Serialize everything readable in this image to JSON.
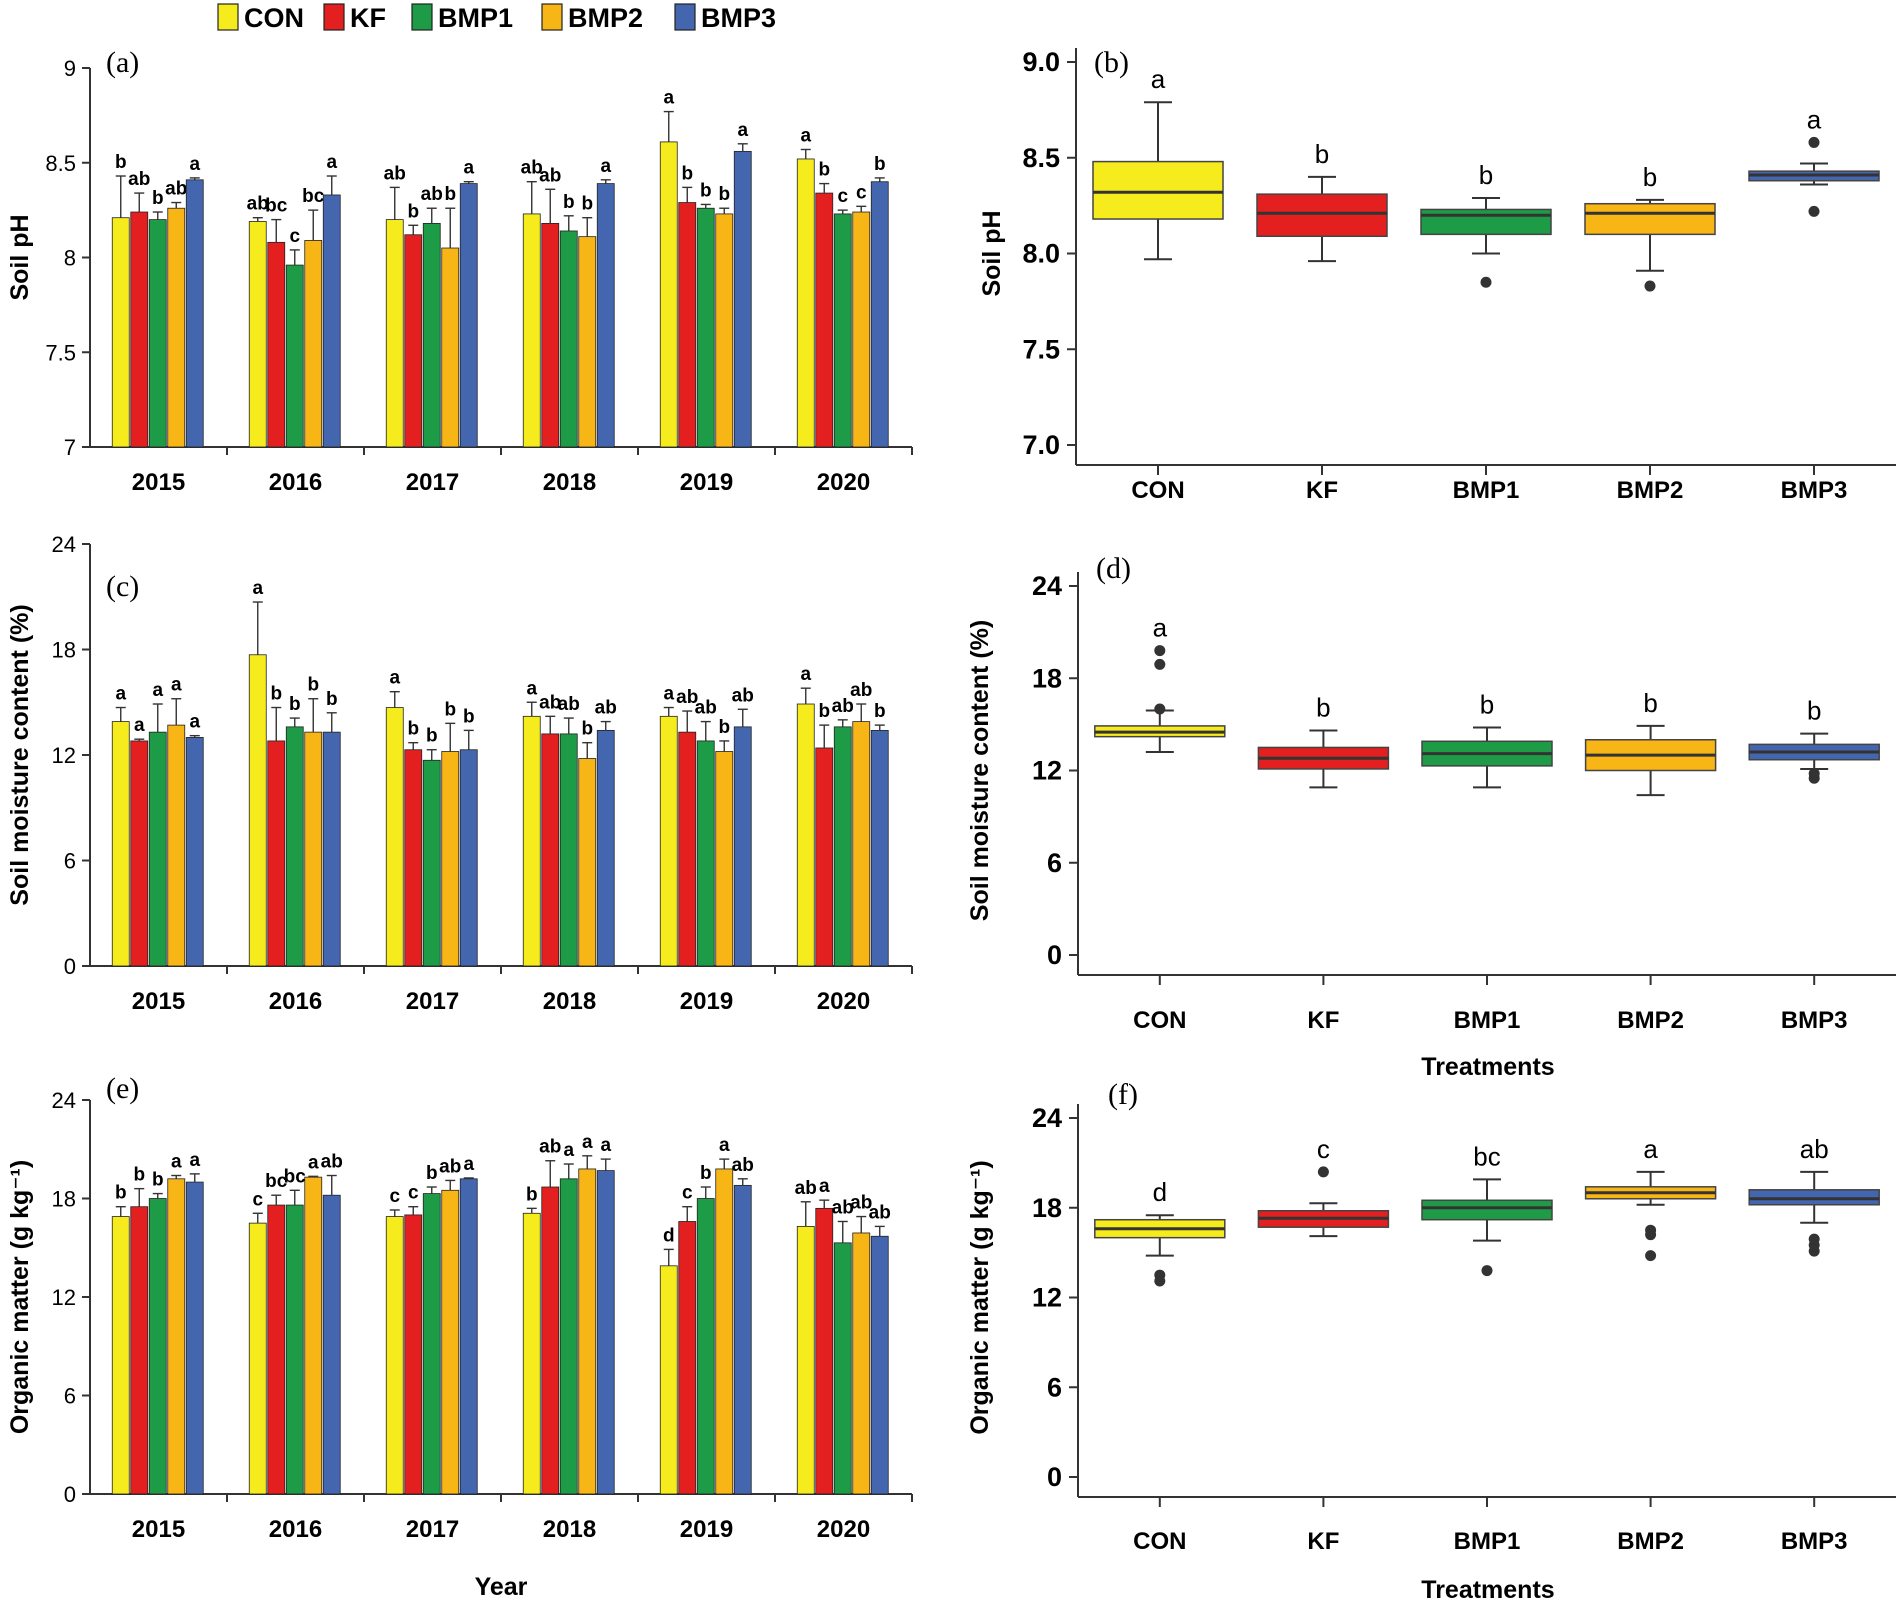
{
  "legend": {
    "items": [
      {
        "label": "CON",
        "color": "#F6EB1D"
      },
      {
        "label": "KF",
        "color": "#E3201F"
      },
      {
        "label": "BMP1",
        "color": "#1E9B47"
      },
      {
        "label": "BMP2",
        "color": "#F8B616"
      },
      {
        "label": "BMP3",
        "color": "#4366AE"
      }
    ]
  },
  "chart_data": [
    {
      "id": "a",
      "panel_label": "(a)",
      "type": "bar",
      "ylabel": "Soil pH",
      "xlabel": "",
      "ylim": [
        7,
        9
      ],
      "yticks": [
        "7",
        "7.5",
        "8",
        "8.5",
        "9"
      ],
      "categories": [
        "2015",
        "2016",
        "2017",
        "2018",
        "2019",
        "2020"
      ],
      "series": [
        {
          "name": "CON",
          "values": [
            8.21,
            8.19,
            8.2,
            8.23,
            8.61,
            8.52
          ],
          "errors": [
            0.22,
            0.02,
            0.17,
            0.17,
            0.16,
            0.05
          ],
          "labels": [
            "b",
            "ab",
            "ab",
            "ab",
            "a",
            "a"
          ]
        },
        {
          "name": "KF",
          "values": [
            8.24,
            8.08,
            8.12,
            8.18,
            8.29,
            8.34
          ],
          "errors": [
            0.1,
            0.12,
            0.05,
            0.18,
            0.08,
            0.05
          ],
          "labels": [
            "ab",
            "bc",
            "b",
            "ab",
            "b",
            "b"
          ]
        },
        {
          "name": "BMP1",
          "values": [
            8.2,
            7.96,
            8.18,
            8.14,
            8.26,
            8.23
          ],
          "errors": [
            0.04,
            0.08,
            0.08,
            0.08,
            0.02,
            0.02
          ],
          "labels": [
            "b",
            "c",
            "ab",
            "b",
            "b",
            "c"
          ]
        },
        {
          "name": "BMP2",
          "values": [
            8.26,
            8.09,
            8.05,
            8.11,
            8.23,
            8.24
          ],
          "errors": [
            0.03,
            0.16,
            0.21,
            0.1,
            0.03,
            0.03
          ],
          "labels": [
            "ab",
            "bc",
            "b",
            "b",
            "b",
            "c"
          ]
        },
        {
          "name": "BMP3",
          "values": [
            8.41,
            8.33,
            8.39,
            8.39,
            8.56,
            8.4
          ],
          "errors": [
            0.01,
            0.1,
            0.01,
            0.02,
            0.04,
            0.02
          ],
          "labels": [
            "a",
            "a",
            "a",
            "a",
            "a",
            "b"
          ]
        }
      ]
    },
    {
      "id": "b",
      "panel_label": "(b)",
      "type": "box",
      "ylabel": "Soil pH",
      "xlabel": "",
      "ylim": [
        7.0,
        9.0
      ],
      "yticks": [
        "7.0",
        "7.5",
        "8.0",
        "8.5",
        "9.0"
      ],
      "categories": [
        "CON",
        "KF",
        "BMP1",
        "BMP2",
        "BMP3"
      ],
      "boxes": [
        {
          "name": "CON",
          "q1": 8.18,
          "median": 8.32,
          "q3": 8.48,
          "whisker_low": 7.97,
          "whisker_high": 8.79,
          "outliers": [],
          "label": "a"
        },
        {
          "name": "KF",
          "q1": 8.09,
          "median": 8.21,
          "q3": 8.31,
          "whisker_low": 7.96,
          "whisker_high": 8.4,
          "outliers": [],
          "label": "b"
        },
        {
          "name": "BMP1",
          "q1": 8.1,
          "median": 8.2,
          "q3": 8.23,
          "whisker_low": 8.0,
          "whisker_high": 8.29,
          "outliers": [
            7.85
          ],
          "label": "b"
        },
        {
          "name": "BMP2",
          "q1": 8.1,
          "median": 8.21,
          "q3": 8.26,
          "whisker_low": 7.91,
          "whisker_high": 8.28,
          "outliers": [
            7.83
          ],
          "label": "b"
        },
        {
          "name": "BMP3",
          "q1": 8.38,
          "median": 8.41,
          "q3": 8.43,
          "whisker_low": 8.36,
          "whisker_high": 8.47,
          "outliers": [
            8.22,
            8.58
          ],
          "label": "a"
        }
      ]
    },
    {
      "id": "c",
      "panel_label": "(c)",
      "type": "bar",
      "ylabel": "Soil moisture content (%)",
      "xlabel": "",
      "ylim": [
        0,
        24
      ],
      "yticks": [
        "0",
        "6",
        "12",
        "18",
        "24"
      ],
      "categories": [
        "2015",
        "2016",
        "2017",
        "2018",
        "2019",
        "2020"
      ],
      "series": [
        {
          "name": "CON",
          "values": [
            13.9,
            17.7,
            14.7,
            14.2,
            14.2,
            14.9
          ],
          "errors": [
            0.8,
            3.0,
            0.9,
            0.8,
            0.5,
            0.9
          ],
          "labels": [
            "a",
            "a",
            "a",
            "a",
            "a",
            "a"
          ]
        },
        {
          "name": "KF",
          "values": [
            12.8,
            12.8,
            12.3,
            13.2,
            13.3,
            12.4
          ],
          "errors": [
            0.1,
            1.9,
            0.4,
            1.0,
            1.2,
            1.3
          ],
          "labels": [
            "a",
            "b",
            "b",
            "ab",
            "ab",
            "b"
          ]
        },
        {
          "name": "BMP1",
          "values": [
            13.3,
            13.6,
            11.7,
            13.2,
            12.8,
            13.6
          ],
          "errors": [
            1.6,
            0.5,
            0.6,
            0.9,
            1.1,
            0.4
          ],
          "labels": [
            "a",
            "b",
            "b",
            "ab",
            "ab",
            "ab"
          ]
        },
        {
          "name": "BMP2",
          "values": [
            13.7,
            13.3,
            12.2,
            11.8,
            12.2,
            13.9
          ],
          "errors": [
            1.5,
            1.9,
            1.6,
            0.9,
            0.6,
            1.0
          ],
          "labels": [
            "a",
            "b",
            "b",
            "b",
            "b",
            "ab"
          ]
        },
        {
          "name": "BMP3",
          "values": [
            13.0,
            13.3,
            12.3,
            13.4,
            13.6,
            13.4
          ],
          "errors": [
            0.1,
            1.1,
            1.1,
            0.5,
            1.0,
            0.3
          ],
          "labels": [
            "a",
            "b",
            "b",
            "ab",
            "ab",
            "b"
          ]
        }
      ]
    },
    {
      "id": "d",
      "panel_label": "(d)",
      "type": "box",
      "ylabel": "Soil moisture content (%)",
      "xlabel": "Treatments",
      "ylim": [
        0,
        24
      ],
      "yticks": [
        "0",
        "6",
        "12",
        "18",
        "24"
      ],
      "categories": [
        "CON",
        "KF",
        "BMP1",
        "BMP2",
        "BMP3"
      ],
      "boxes": [
        {
          "name": "CON",
          "q1": 14.2,
          "median": 14.5,
          "q3": 14.9,
          "whisker_low": 13.2,
          "whisker_high": 15.9,
          "outliers": [
            16.0,
            18.9,
            19.8
          ],
          "label": "a"
        },
        {
          "name": "KF",
          "q1": 12.1,
          "median": 12.8,
          "q3": 13.5,
          "whisker_low": 10.9,
          "whisker_high": 14.6,
          "outliers": [],
          "label": "b"
        },
        {
          "name": "BMP1",
          "q1": 12.3,
          "median": 13.1,
          "q3": 13.9,
          "whisker_low": 10.9,
          "whisker_high": 14.8,
          "outliers": [],
          "label": "b"
        },
        {
          "name": "BMP2",
          "q1": 12.0,
          "median": 13.0,
          "q3": 14.0,
          "whisker_low": 10.4,
          "whisker_high": 14.9,
          "outliers": [],
          "label": "b"
        },
        {
          "name": "BMP3",
          "q1": 12.7,
          "median": 13.2,
          "q3": 13.7,
          "whisker_low": 12.1,
          "whisker_high": 14.4,
          "outliers": [
            11.5,
            11.8
          ],
          "label": "b"
        }
      ]
    },
    {
      "id": "e",
      "panel_label": "(e)",
      "type": "bar",
      "ylabel": "Organic matter (g kg⁻¹)",
      "xlabel": "Year",
      "ylim": [
        0,
        24
      ],
      "yticks": [
        "0",
        "6",
        "12",
        "18",
        "24"
      ],
      "categories": [
        "2015",
        "2016",
        "2017",
        "2018",
        "2019",
        "2020"
      ],
      "series": [
        {
          "name": "CON",
          "values": [
            16.9,
            16.5,
            16.9,
            17.1,
            13.9,
            16.3
          ],
          "errors": [
            0.6,
            0.6,
            0.4,
            0.3,
            1.0,
            1.5
          ],
          "labels": [
            "b",
            "c",
            "c",
            "b",
            "d",
            "ab"
          ]
        },
        {
          "name": "KF",
          "values": [
            17.5,
            17.6,
            17.0,
            18.7,
            16.6,
            17.4
          ],
          "errors": [
            1.1,
            0.6,
            0.5,
            1.6,
            0.9,
            0.5
          ],
          "labels": [
            "b",
            "bc",
            "c",
            "ab",
            "c",
            "a"
          ]
        },
        {
          "name": "BMP1",
          "values": [
            18.0,
            17.6,
            18.3,
            19.2,
            18.0,
            15.3
          ],
          "errors": [
            0.3,
            0.9,
            0.4,
            0.9,
            0.7,
            1.3
          ],
          "labels": [
            "b",
            "bc",
            "b",
            "a",
            "b",
            "ab"
          ]
        },
        {
          "name": "BMP2",
          "values": [
            19.2,
            19.3,
            18.5,
            19.8,
            19.8,
            15.9
          ],
          "errors": [
            0.2,
            0.05,
            0.6,
            0.8,
            0.6,
            1.0
          ],
          "labels": [
            "a",
            "a",
            "ab",
            "a",
            "a",
            "ab"
          ]
        },
        {
          "name": "BMP3",
          "values": [
            19.0,
            18.2,
            19.2,
            19.7,
            18.8,
            15.7
          ],
          "errors": [
            0.5,
            1.2,
            0.05,
            0.7,
            0.4,
            0.6
          ],
          "labels": [
            "a",
            "ab",
            "a",
            "a",
            "ab",
            "ab"
          ]
        }
      ]
    },
    {
      "id": "f",
      "panel_label": "(f)",
      "type": "box",
      "ylabel": "Organic matter (g kg⁻¹)",
      "xlabel": "Treatments",
      "ylim": [
        0,
        24
      ],
      "yticks": [
        "0",
        "6",
        "12",
        "18",
        "24"
      ],
      "categories": [
        "CON",
        "KF",
        "BMP1",
        "BMP2",
        "BMP3"
      ],
      "boxes": [
        {
          "name": "CON",
          "q1": 16.0,
          "median": 16.6,
          "q3": 17.2,
          "whisker_low": 14.8,
          "whisker_high": 17.5,
          "outliers": [
            13.1,
            13.5
          ],
          "label": "d"
        },
        {
          "name": "KF",
          "q1": 16.7,
          "median": 17.3,
          "q3": 17.8,
          "whisker_low": 16.1,
          "whisker_high": 18.3,
          "outliers": [
            20.4
          ],
          "label": "c"
        },
        {
          "name": "BMP1",
          "q1": 17.2,
          "median": 18.0,
          "q3": 18.5,
          "whisker_low": 15.8,
          "whisker_high": 19.9,
          "outliers": [
            13.8
          ],
          "label": "bc"
        },
        {
          "name": "BMP2",
          "q1": 18.6,
          "median": 19.0,
          "q3": 19.4,
          "whisker_low": 18.2,
          "whisker_high": 20.4,
          "outliers": [
            14.8,
            16.2,
            16.5
          ],
          "label": "a"
        },
        {
          "name": "BMP3",
          "q1": 18.2,
          "median": 18.6,
          "q3": 19.2,
          "whisker_low": 17.0,
          "whisker_high": 20.4,
          "outliers": [
            15.1,
            15.5,
            15.9
          ],
          "label": "ab"
        }
      ]
    }
  ]
}
